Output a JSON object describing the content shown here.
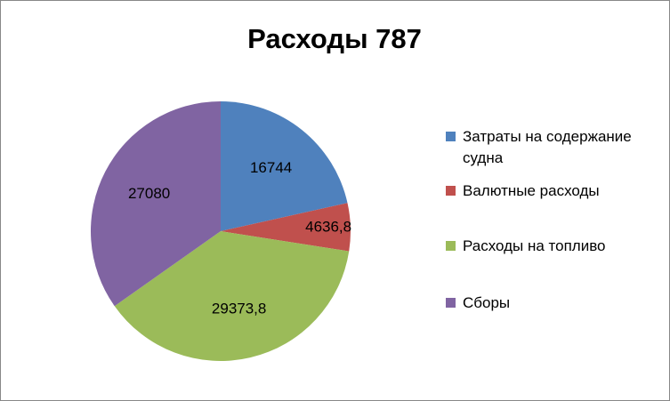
{
  "chart_data": {
    "type": "pie",
    "title": "Расходы 787",
    "categories": [
      "Затраты на содержание судна",
      "Валютные расходы",
      "Расходы на топливо",
      "Сборы"
    ],
    "values": [
      16744,
      4636.8,
      29373.8,
      27080
    ],
    "value_labels": [
      "16744",
      "4636,8",
      "29373,8",
      "27080"
    ],
    "colors": [
      "#4f81bd",
      "#c0504d",
      "#9bbb59",
      "#8064a2"
    ],
    "legend": "right"
  }
}
